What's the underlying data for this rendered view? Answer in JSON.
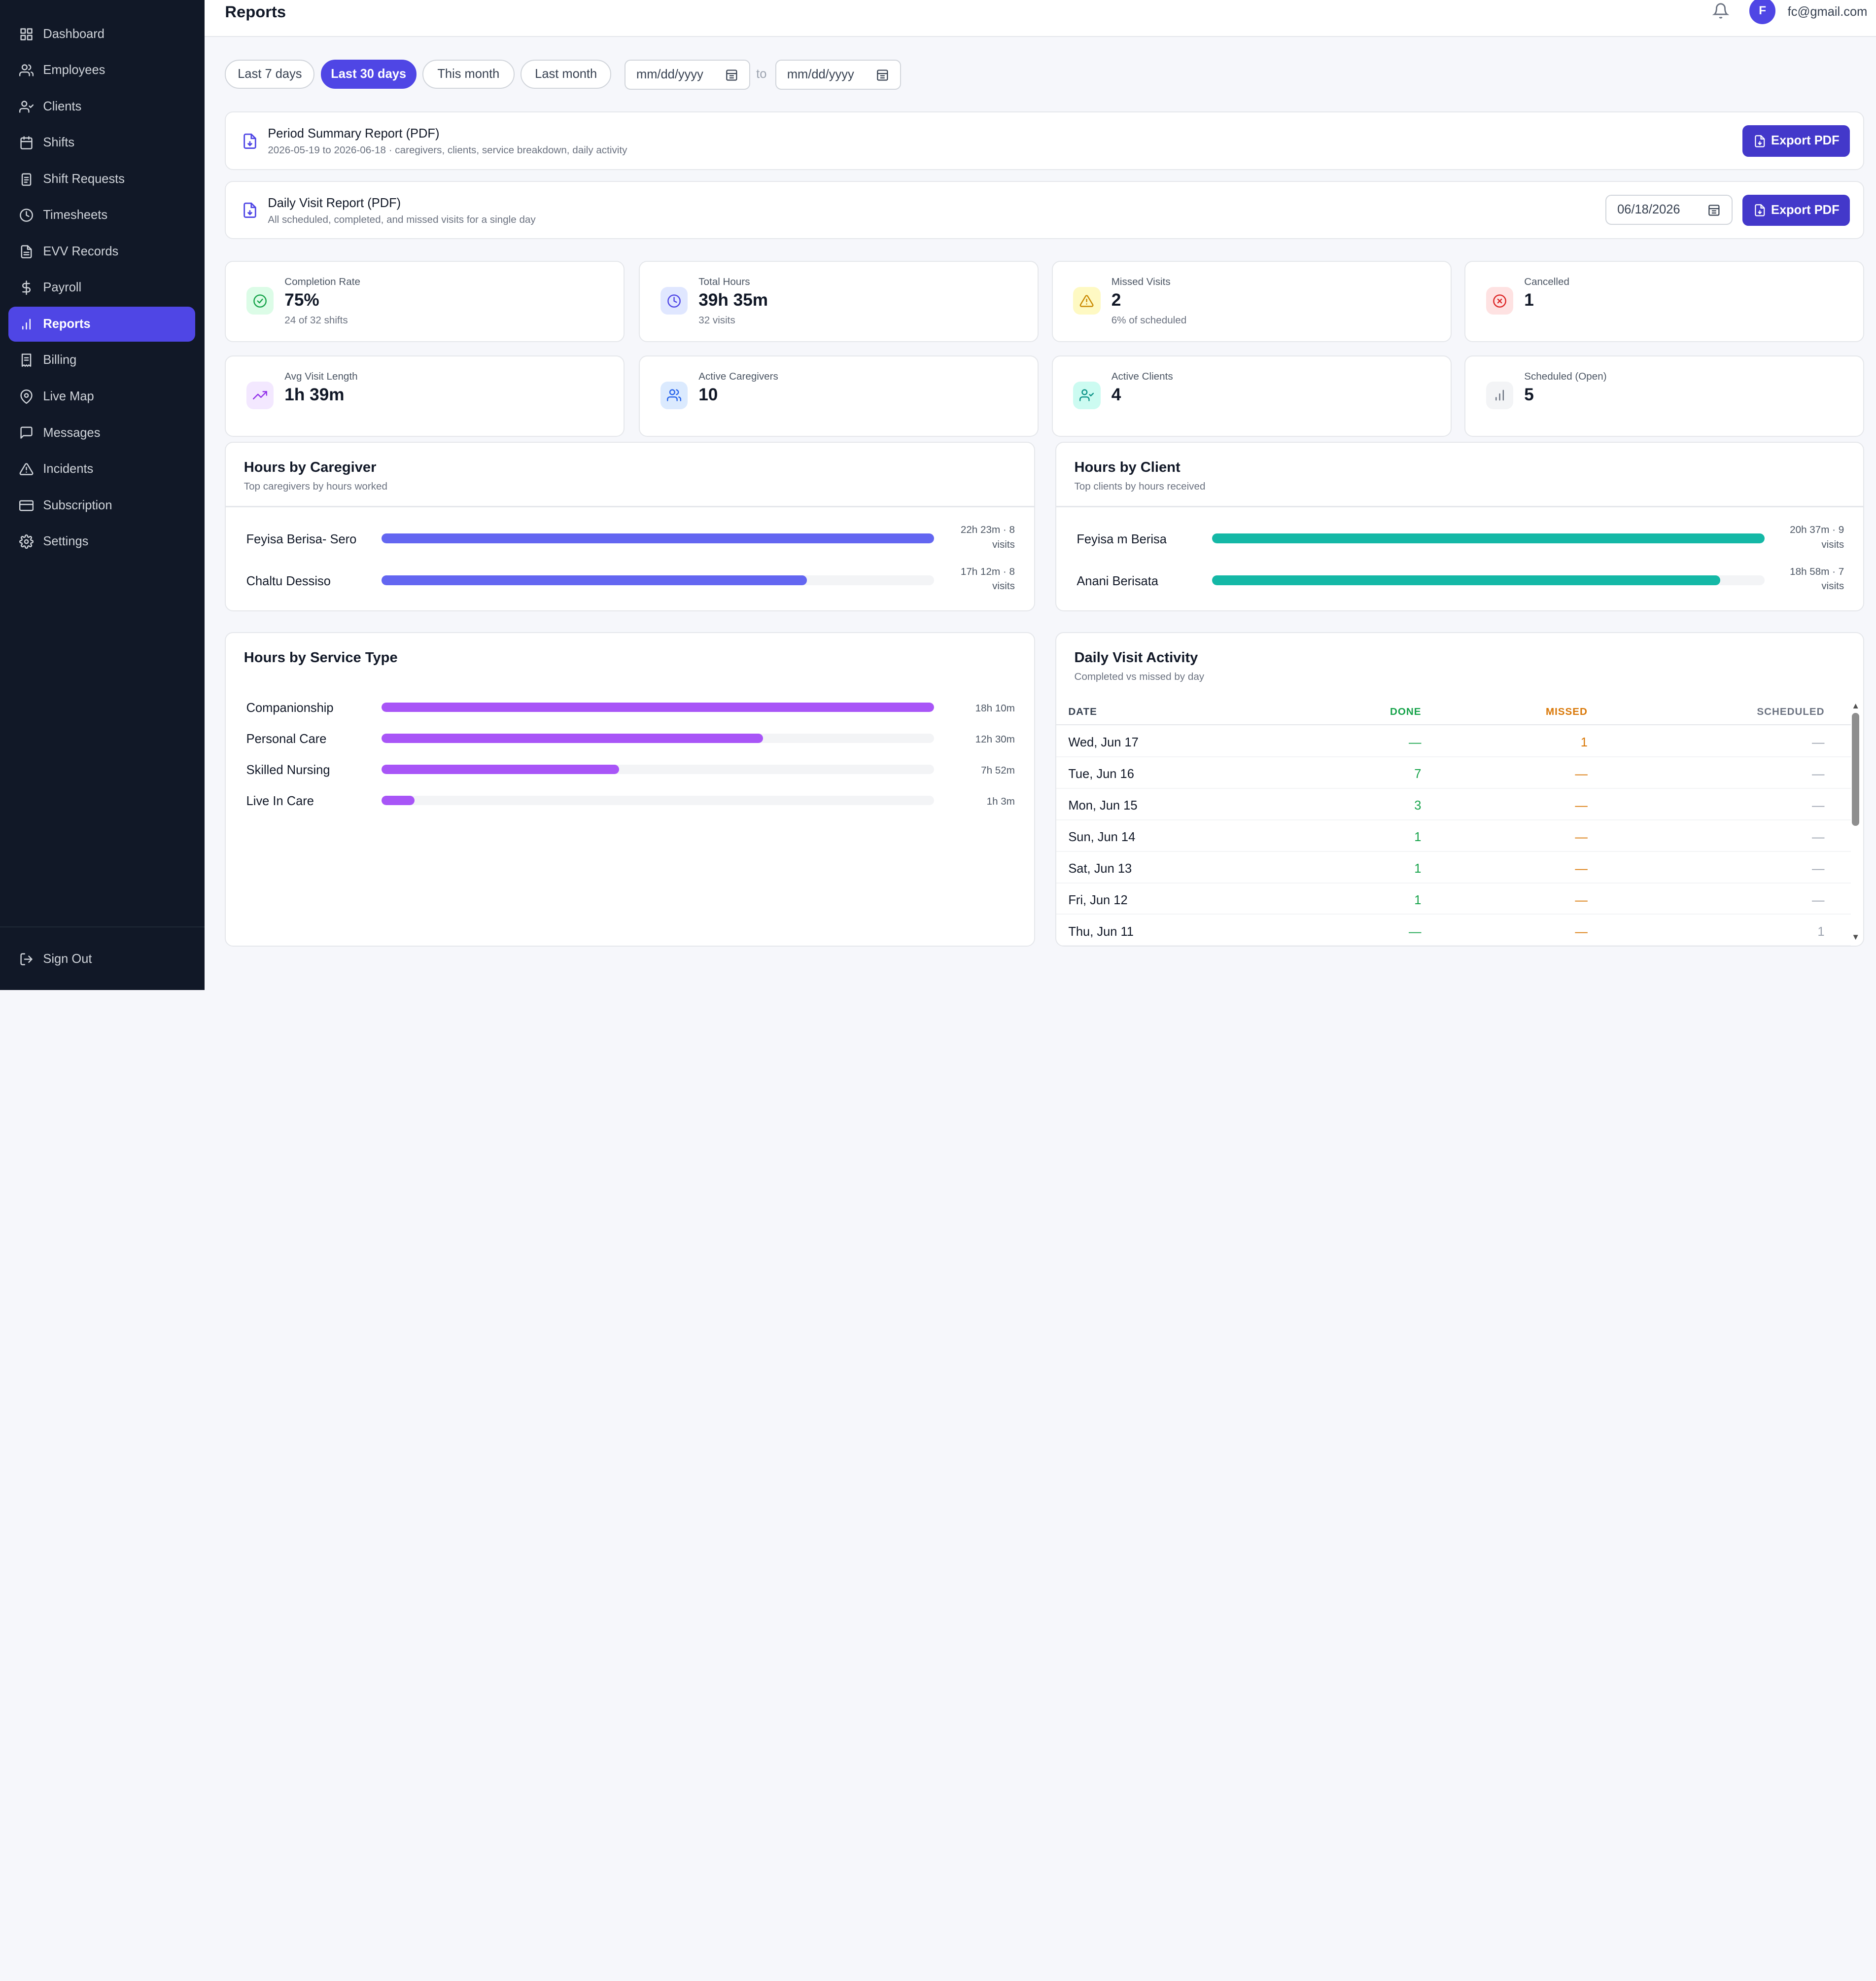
{
  "sidebar": {
    "items": [
      {
        "label": "Dashboard",
        "icon": "dashboard-icon"
      },
      {
        "label": "Employees",
        "icon": "users-icon"
      },
      {
        "label": "Clients",
        "icon": "user-check-icon"
      },
      {
        "label": "Shifts",
        "icon": "calendar-icon"
      },
      {
        "label": "Shift Requests",
        "icon": "clipboard-icon"
      },
      {
        "label": "Timesheets",
        "icon": "clock-icon"
      },
      {
        "label": "EVV Records",
        "icon": "file-icon"
      },
      {
        "label": "Payroll",
        "icon": "dollar-icon"
      },
      {
        "label": "Reports",
        "icon": "bar-chart-icon",
        "active": true
      },
      {
        "label": "Billing",
        "icon": "receipt-icon"
      },
      {
        "label": "Live Map",
        "icon": "map-pin-icon"
      },
      {
        "label": "Messages",
        "icon": "message-icon"
      },
      {
        "label": "Incidents",
        "icon": "alert-triangle-icon"
      },
      {
        "label": "Subscription",
        "icon": "credit-card-icon"
      },
      {
        "label": "Settings",
        "icon": "gear-icon"
      }
    ],
    "sign_out": "Sign Out"
  },
  "header": {
    "title": "Reports",
    "avatar_initial": "F",
    "user_email": "fc@gmail.com"
  },
  "filters": {
    "presets": [
      "Last 7 days",
      "Last 30 days",
      "This month",
      "Last month"
    ],
    "active_preset": "Last 30 days",
    "from_placeholder": "mm/dd/yyyy",
    "to_label": "to",
    "to_placeholder": "mm/dd/yyyy"
  },
  "reports": {
    "period": {
      "title": "Period Summary Report (PDF)",
      "subtitle": "2026-05-19 to 2026-06-18 · caregivers, clients, service breakdown, daily activity",
      "button": "Export PDF"
    },
    "daily": {
      "title": "Daily Visit Report (PDF)",
      "subtitle": "All scheduled, completed, and missed visits for a single day",
      "date": "06/18/2026",
      "button": "Export PDF"
    }
  },
  "stats": [
    {
      "label": "Completion Rate",
      "value": "75%",
      "sub": "24 of 32 shifts",
      "icon": "check-circle-icon",
      "color": "#16a34a",
      "bg": "#dcfce7"
    },
    {
      "label": "Total Hours",
      "value": "39h 35m",
      "sub": "32 visits",
      "icon": "clock-icon",
      "color": "#4f46e5",
      "bg": "#e0e7ff"
    },
    {
      "label": "Missed Visits",
      "value": "2",
      "sub": "6% of scheduled",
      "icon": "alert-triangle-icon",
      "color": "#ca8a04",
      "bg": "#fef9c3"
    },
    {
      "label": "Cancelled",
      "value": "1",
      "sub": "",
      "icon": "x-circle-icon",
      "color": "#dc2626",
      "bg": "#fee2e2"
    },
    {
      "label": "Avg Visit Length",
      "value": "1h 39m",
      "sub": "",
      "icon": "trending-up-icon",
      "color": "#9333ea",
      "bg": "#f3e8ff"
    },
    {
      "label": "Active Caregivers",
      "value": "10",
      "sub": "",
      "icon": "users-icon",
      "color": "#2563eb",
      "bg": "#dbeafe"
    },
    {
      "label": "Active Clients",
      "value": "4",
      "sub": "",
      "icon": "user-check-icon",
      "color": "#0d9488",
      "bg": "#ccfbf1"
    },
    {
      "label": "Scheduled (Open)",
      "value": "5",
      "sub": "",
      "icon": "bar-chart-icon",
      "color": "#6b7280",
      "bg": "#f3f4f6"
    }
  ],
  "hours_by_caregiver": {
    "title": "Hours by Caregiver",
    "subtitle": "Top caregivers by hours worked",
    "color": "#6366f1",
    "rows": [
      {
        "name": "Feyisa Berisa- Sero",
        "fraction": 1.0,
        "value": "22h 23m · 8 visits"
      },
      {
        "name": "Chaltu Dessiso",
        "fraction": 0.77,
        "value": "17h 12m · 8 visits"
      }
    ]
  },
  "hours_by_client": {
    "title": "Hours by Client",
    "subtitle": "Top clients by hours received",
    "color": "#14b8a6",
    "rows": [
      {
        "name": "Feyisa m Berisa",
        "fraction": 1.0,
        "value": "20h 37m · 9 visits"
      },
      {
        "name": "Anani Berisata",
        "fraction": 0.92,
        "value": "18h 58m · 7 visits"
      }
    ]
  },
  "hours_by_service": {
    "title": "Hours by Service Type",
    "color": "#a855f7",
    "rows": [
      {
        "name": "Companionship",
        "fraction": 1.0,
        "value": "18h 10m"
      },
      {
        "name": "Personal Care",
        "fraction": 0.69,
        "value": "12h 30m"
      },
      {
        "name": "Skilled Nursing",
        "fraction": 0.43,
        "value": "7h 52m"
      },
      {
        "name": "Live In Care",
        "fraction": 0.06,
        "value": "1h 3m"
      }
    ]
  },
  "daily_activity": {
    "title": "Daily Visit Activity",
    "subtitle": "Completed vs missed by day",
    "headers": {
      "date": "DATE",
      "done": "DONE",
      "missed": "MISSED",
      "scheduled": "SCHEDULED"
    },
    "rows": [
      {
        "date": "Wed, Jun 17",
        "done": "—",
        "missed": "1",
        "scheduled": "—"
      },
      {
        "date": "Tue, Jun 16",
        "done": "7",
        "missed": "—",
        "scheduled": "—"
      },
      {
        "date": "Mon, Jun 15",
        "done": "3",
        "missed": "—",
        "scheduled": "—"
      },
      {
        "date": "Sun, Jun 14",
        "done": "1",
        "missed": "—",
        "scheduled": "—"
      },
      {
        "date": "Sat, Jun 13",
        "done": "1",
        "missed": "—",
        "scheduled": "—"
      },
      {
        "date": "Fri, Jun 12",
        "done": "1",
        "missed": "—",
        "scheduled": "—"
      },
      {
        "date": "Thu, Jun 11",
        "done": "—",
        "missed": "—",
        "scheduled": "1"
      }
    ]
  }
}
